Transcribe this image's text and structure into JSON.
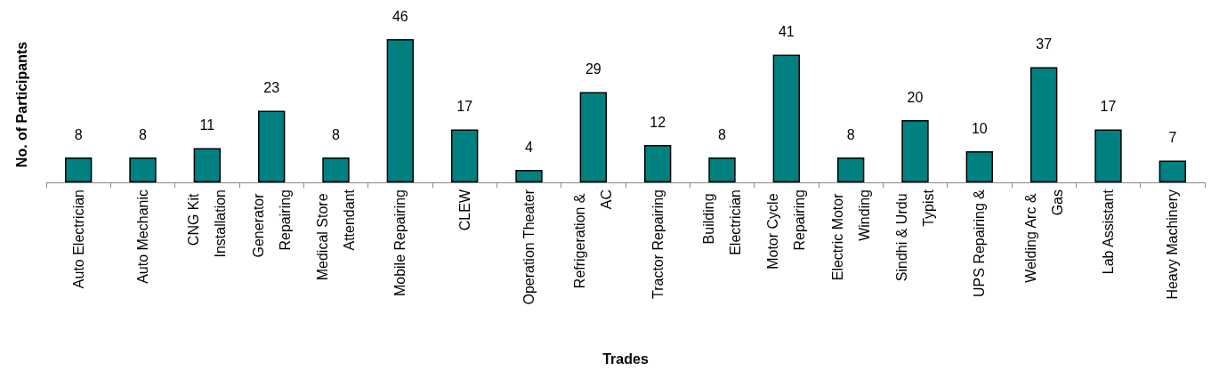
{
  "chart_data": {
    "type": "bar",
    "xlabel": "Trades",
    "ylabel": "No. of Participants",
    "categories": [
      "Auto Electrician",
      "Auto Mechanic",
      "CNG Kit Installation",
      "Generator Repairing",
      "Medical Store Attendant",
      "Mobile Repairing",
      "CLEW",
      "Operation Theater",
      "Refrigeration & AC",
      "Tractor Repairing",
      "Building Electrician",
      "Motor Cycle Repairing",
      "Electric Motor Winding",
      "Sindhi & Urdu Typist",
      "UPS Repairing &",
      "Welding Arc & Gas",
      "Lab Assistant",
      "Heavy Machinery"
    ],
    "values": [
      8,
      8,
      11,
      23,
      8,
      46,
      17,
      4,
      29,
      12,
      8,
      41,
      8,
      20,
      10,
      37,
      17,
      7
    ],
    "color": "#008080",
    "data_labels": true,
    "grid": false
  }
}
